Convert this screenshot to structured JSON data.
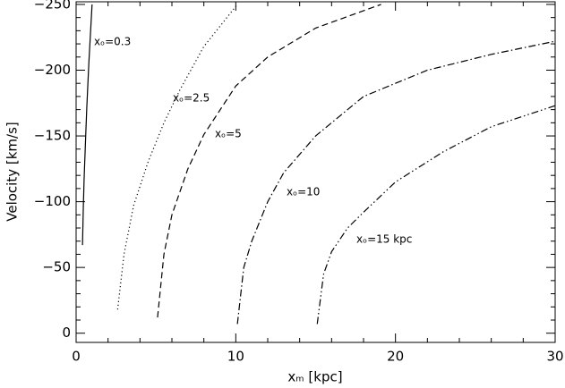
{
  "chart_data": {
    "type": "line",
    "x_label": "xₘ [kpc]",
    "y_label": "Velocity [km/s]",
    "xlim": [
      0,
      30
    ],
    "ylim": [
      7,
      -252
    ],
    "xticks": [
      0,
      10,
      20,
      30
    ],
    "yticks": [
      0,
      {
        "value": -50,
        "label": "−50"
      },
      {
        "value": -100,
        "label": "−100"
      },
      {
        "value": -150,
        "label": "−150"
      },
      {
        "value": -200,
        "label": "−200"
      },
      {
        "value": -250,
        "label": "−250"
      }
    ],
    "xminorticks": [
      2,
      4,
      6,
      8,
      12,
      14,
      16,
      18,
      22,
      24,
      26,
      28
    ],
    "yminorticks": [
      -10,
      -20,
      -30,
      -40,
      -60,
      -70,
      -80,
      -90,
      -110,
      -120,
      -130,
      -140,
      -160,
      -170,
      -180,
      -190,
      -210,
      -220,
      -230,
      -240
    ],
    "series": [
      {
        "label": "xₒ=0.3",
        "color": "#000000",
        "dash": "solid",
        "x": [
          0.4,
          0.45,
          0.5,
          0.6,
          0.67,
          0.8,
          1.0
        ],
        "values": [
          -67,
          -95,
          -117,
          -150,
          -172,
          -206,
          -250
        ]
      },
      {
        "label": "xₒ=2.5",
        "color": "#000000",
        "dash": "dotted",
        "x": [
          2.6,
          3.0,
          3.6,
          4.5,
          5.5,
          6.5,
          8,
          10.1
        ],
        "values": [
          -18,
          -60,
          -97,
          -130,
          -160,
          -185,
          -218,
          -250
        ]
      },
      {
        "label": "xₒ=5",
        "color": "#000000",
        "dash": "dashed",
        "x": [
          5.1,
          5.5,
          6,
          7,
          8,
          10,
          12,
          15,
          19.1
        ],
        "values": [
          -12,
          -60,
          -90,
          -125,
          -151,
          -188,
          -210,
          -232,
          -250
        ]
      },
      {
        "label": "xₒ=10",
        "color": "#000000",
        "dash": "dashdot",
        "x": [
          10.1,
          10.5,
          11,
          12,
          13,
          15,
          18,
          22,
          26,
          30
        ],
        "values": [
          -7,
          -50,
          -70,
          -100,
          -122,
          -150,
          -180,
          -200,
          -212,
          -222
        ]
      },
      {
        "label": "xₒ=15 kpc",
        "color": "#000000",
        "dash": "dashdotdot",
        "x": [
          15.1,
          15.5,
          16,
          17,
          18,
          20,
          23,
          26,
          30
        ],
        "values": [
          -7,
          -45,
          -62,
          -80,
          -92,
          -115,
          -138,
          -157,
          -173
        ]
      }
    ]
  }
}
